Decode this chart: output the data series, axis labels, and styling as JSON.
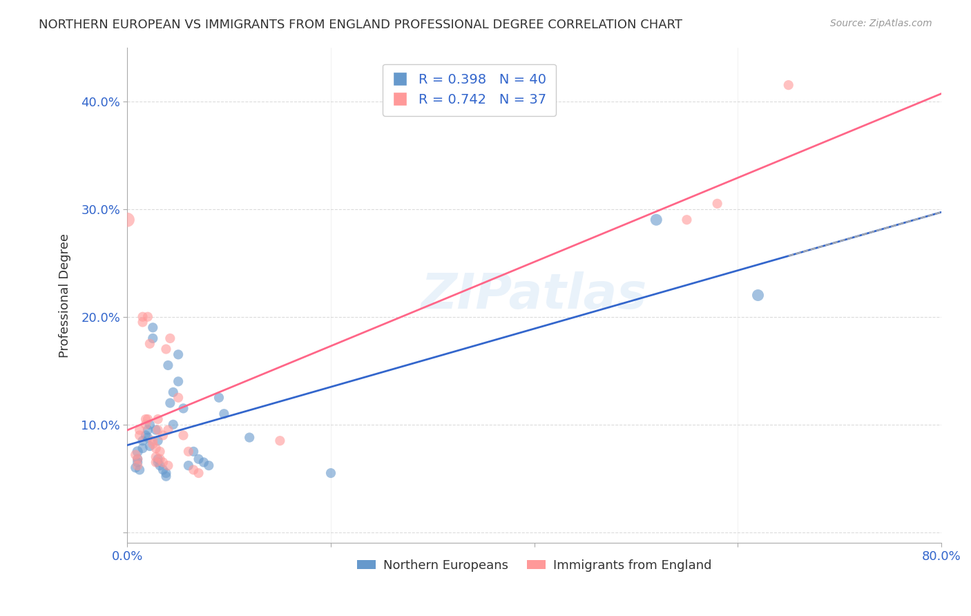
{
  "title": "NORTHERN EUROPEAN VS IMMIGRANTS FROM ENGLAND PROFESSIONAL DEGREE CORRELATION CHART",
  "source": "Source: ZipAtlas.com",
  "xlabel": "",
  "ylabel": "Professional Degree",
  "xlim": [
    0,
    0.8
  ],
  "ylim": [
    -0.01,
    0.45
  ],
  "ytick_labels": [
    "",
    "10.0%",
    "20.0%",
    "30.0%",
    "40.0%"
  ],
  "ytick_vals": [
    0.0,
    0.1,
    0.2,
    0.3,
    0.4
  ],
  "xtick_labels": [
    "0.0%",
    "",
    "",
    "",
    "80.0%"
  ],
  "xtick_vals": [
    0.0,
    0.2,
    0.4,
    0.6,
    0.8
  ],
  "blue_R": 0.398,
  "blue_N": 40,
  "pink_R": 0.742,
  "pink_N": 37,
  "blue_color": "#6699CC",
  "pink_color": "#FF9999",
  "blue_line_color": "#3366CC",
  "pink_line_color": "#FF6688",
  "grid_color": "#CCCCCC",
  "watermark": "ZIPatlas",
  "legend_label_blue": "Northern Europeans",
  "legend_label_pink": "Immigrants from England",
  "blue_points": [
    [
      0.01,
      0.075
    ],
    [
      0.01,
      0.068
    ],
    [
      0.01,
      0.065
    ],
    [
      0.008,
      0.06
    ],
    [
      0.012,
      0.058
    ],
    [
      0.015,
      0.085
    ],
    [
      0.015,
      0.078
    ],
    [
      0.018,
      0.09
    ],
    [
      0.02,
      0.095
    ],
    [
      0.02,
      0.088
    ],
    [
      0.022,
      0.1
    ],
    [
      0.022,
      0.08
    ],
    [
      0.025,
      0.19
    ],
    [
      0.025,
      0.18
    ],
    [
      0.028,
      0.095
    ],
    [
      0.03,
      0.085
    ],
    [
      0.03,
      0.068
    ],
    [
      0.03,
      0.065
    ],
    [
      0.032,
      0.062
    ],
    [
      0.035,
      0.058
    ],
    [
      0.038,
      0.055
    ],
    [
      0.038,
      0.052
    ],
    [
      0.04,
      0.155
    ],
    [
      0.042,
      0.12
    ],
    [
      0.045,
      0.1
    ],
    [
      0.045,
      0.13
    ],
    [
      0.05,
      0.165
    ],
    [
      0.05,
      0.14
    ],
    [
      0.055,
      0.115
    ],
    [
      0.06,
      0.062
    ],
    [
      0.065,
      0.075
    ],
    [
      0.07,
      0.068
    ],
    [
      0.075,
      0.065
    ],
    [
      0.08,
      0.062
    ],
    [
      0.09,
      0.125
    ],
    [
      0.095,
      0.11
    ],
    [
      0.12,
      0.088
    ],
    [
      0.2,
      0.055
    ],
    [
      0.52,
      0.29
    ],
    [
      0.62,
      0.22
    ]
  ],
  "pink_points": [
    [
      0.008,
      0.072
    ],
    [
      0.01,
      0.068
    ],
    [
      0.01,
      0.062
    ],
    [
      0.012,
      0.095
    ],
    [
      0.012,
      0.09
    ],
    [
      0.015,
      0.2
    ],
    [
      0.015,
      0.195
    ],
    [
      0.018,
      0.105
    ],
    [
      0.018,
      0.1
    ],
    [
      0.02,
      0.2
    ],
    [
      0.02,
      0.105
    ],
    [
      0.022,
      0.175
    ],
    [
      0.025,
      0.085
    ],
    [
      0.025,
      0.082
    ],
    [
      0.028,
      0.078
    ],
    [
      0.028,
      0.07
    ],
    [
      0.028,
      0.065
    ],
    [
      0.03,
      0.105
    ],
    [
      0.03,
      0.095
    ],
    [
      0.032,
      0.075
    ],
    [
      0.032,
      0.068
    ],
    [
      0.035,
      0.09
    ],
    [
      0.035,
      0.065
    ],
    [
      0.038,
      0.17
    ],
    [
      0.04,
      0.095
    ],
    [
      0.04,
      0.062
    ],
    [
      0.042,
      0.18
    ],
    [
      0.05,
      0.125
    ],
    [
      0.055,
      0.09
    ],
    [
      0.06,
      0.075
    ],
    [
      0.065,
      0.058
    ],
    [
      0.07,
      0.055
    ],
    [
      0.15,
      0.085
    ],
    [
      0.55,
      0.29
    ],
    [
      0.58,
      0.305
    ],
    [
      0.65,
      0.415
    ],
    [
      0.0,
      0.29
    ]
  ],
  "blue_marker_sizes": [
    8,
    7,
    7,
    7,
    7,
    7,
    7,
    7,
    7,
    7,
    7,
    7,
    7,
    7,
    7,
    7,
    7,
    7,
    7,
    7,
    7,
    7,
    7,
    7,
    7,
    7,
    7,
    7,
    7,
    7,
    7,
    7,
    7,
    7,
    7,
    7,
    7,
    7,
    10,
    10
  ],
  "pink_marker_sizes": [
    7,
    7,
    7,
    7,
    7,
    7,
    7,
    7,
    7,
    7,
    7,
    7,
    7,
    7,
    7,
    7,
    7,
    7,
    7,
    7,
    7,
    7,
    7,
    7,
    7,
    7,
    7,
    7,
    7,
    7,
    7,
    7,
    7,
    7,
    7,
    7,
    15
  ]
}
